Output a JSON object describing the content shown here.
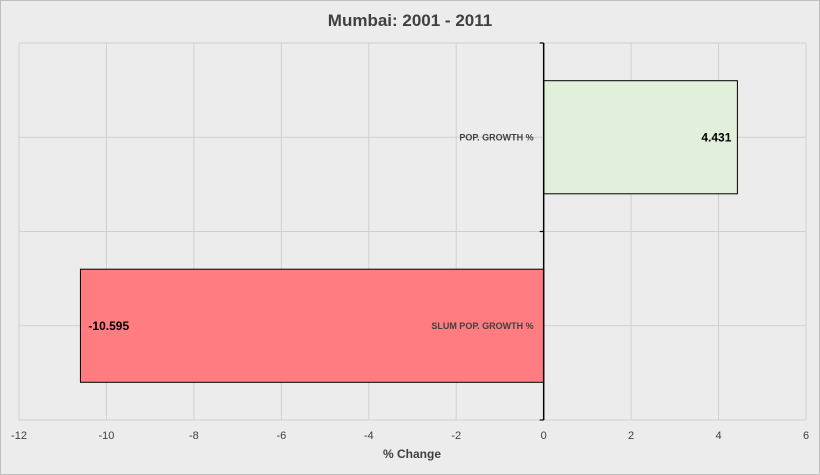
{
  "chart_data": {
    "type": "bar",
    "orientation": "horizontal",
    "title": "Mumbai: 2001 - 2011",
    "xlabel": "% Change",
    "ylabel": "",
    "xlim": [
      -12,
      6
    ],
    "xticks": [
      -12,
      -10,
      -8,
      -6,
      -4,
      -2,
      0,
      2,
      4,
      6
    ],
    "grid": true,
    "legend": "none",
    "categories": [
      "POP. GROWTH %",
      "SLUM POP. GROWTH %"
    ],
    "values": [
      4.431,
      -10.595
    ],
    "data_labels": [
      "4.431",
      "-10.595"
    ],
    "colors": [
      "#e2efda",
      "#ff7c80"
    ]
  }
}
